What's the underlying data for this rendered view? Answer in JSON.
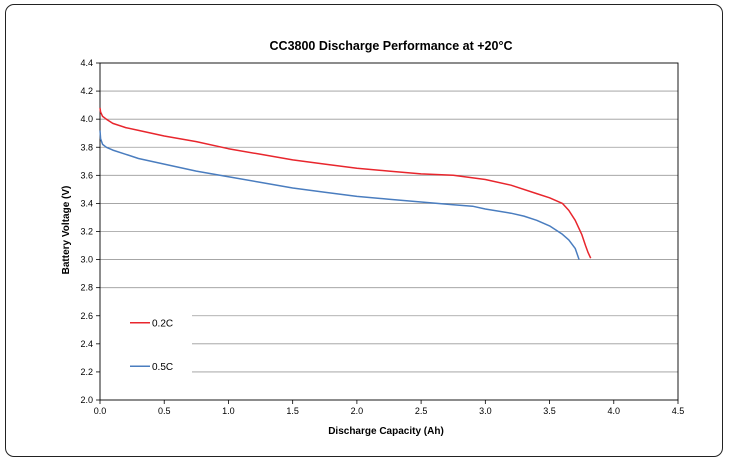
{
  "chart_data": {
    "type": "line",
    "title": "CC3800 Discharge Performance at +20°C",
    "xlabel": "Discharge Capacity (Ah)",
    "ylabel": "Battery Voltage (V)",
    "xlim": [
      0,
      4.5
    ],
    "ylim": [
      2.0,
      4.4
    ],
    "x_ticks": [
      "0.0",
      "0.5",
      "1.0",
      "1.5",
      "2.0",
      "2.5",
      "3.0",
      "3.5",
      "4.0",
      "4.5"
    ],
    "y_ticks": [
      "2.0",
      "2.2",
      "2.4",
      "2.6",
      "2.8",
      "3.0",
      "3.2",
      "3.4",
      "3.6",
      "3.8",
      "4.0",
      "4.2",
      "4.4"
    ],
    "grid": "horizontal",
    "legend_position": "bottom-left",
    "series": [
      {
        "name": "0.2C",
        "color": "#e8262d",
        "x": [
          0,
          0.005,
          0.02,
          0.05,
          0.1,
          0.2,
          0.3,
          0.5,
          0.75,
          1.0,
          1.25,
          1.5,
          1.75,
          2.0,
          2.25,
          2.5,
          2.75,
          3.0,
          3.2,
          3.4,
          3.5,
          3.6,
          3.65,
          3.7,
          3.75,
          3.78,
          3.8,
          3.82
        ],
        "y": [
          4.08,
          4.05,
          4.02,
          4.0,
          3.97,
          3.94,
          3.92,
          3.88,
          3.84,
          3.79,
          3.75,
          3.71,
          3.68,
          3.65,
          3.63,
          3.61,
          3.6,
          3.57,
          3.53,
          3.47,
          3.44,
          3.4,
          3.35,
          3.28,
          3.18,
          3.1,
          3.05,
          3.01
        ]
      },
      {
        "name": "0.5C",
        "color": "#4a7dbf",
        "x": [
          0,
          0.005,
          0.02,
          0.05,
          0.1,
          0.2,
          0.3,
          0.5,
          0.75,
          1.0,
          1.25,
          1.5,
          1.75,
          2.0,
          2.25,
          2.5,
          2.75,
          2.9,
          3.0,
          3.2,
          3.3,
          3.4,
          3.5,
          3.6,
          3.65,
          3.7,
          3.73
        ],
        "y": [
          3.92,
          3.86,
          3.82,
          3.8,
          3.78,
          3.75,
          3.72,
          3.68,
          3.63,
          3.59,
          3.55,
          3.51,
          3.48,
          3.45,
          3.43,
          3.41,
          3.39,
          3.38,
          3.36,
          3.33,
          3.31,
          3.28,
          3.24,
          3.18,
          3.14,
          3.08,
          3.0
        ]
      }
    ]
  }
}
